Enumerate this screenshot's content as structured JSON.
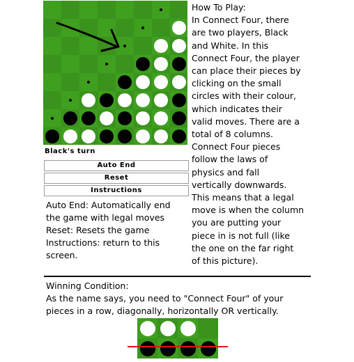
{
  "board": {
    "rows": 8,
    "cols": 8,
    "cells": [
      "......h.",
      ".....h.W",
      "....h.WW",
      "...h.BWB",
      "..h.BWWW",
      ".hWBWWWB",
      "hBBWBWWB",
      "BWWBBWWB"
    ]
  },
  "status": "Black's turn",
  "buttons": {
    "auto_end": "Auto End",
    "reset": "Reset",
    "instructions": "Instructions"
  },
  "control_notes": [
    "Auto End: Automatically end",
    "the game with legal moves",
    "Reset: Resets the game",
    "Instructions: return to this",
    "screen."
  ],
  "how_to_play": [
    "How To Play:",
    "In Connect Four, there",
    "are two players, Black",
    "and White. In this",
    "Connect Four, the player",
    "can place their pieces by",
    "clicking on the small",
    "circles with their colour,",
    "which indicates their",
    "valid moves. There are a",
    "total of 8 columns.",
    "Connect Four pieces",
    "follow the laws of",
    "physics and fall",
    "vertically downwards.",
    "This means that a legal",
    "move is when the column",
    "you are putting your",
    "piece in is not full (like",
    "the one on the far right",
    "of this picture)."
  ],
  "winning": {
    "heading": "Winning Condition:",
    "lines": [
      "As the name says, you need to \"Connect Four\" of your",
      "pieces in a row, diagonally, horizontally OR vertically."
    ]
  },
  "example": {
    "cells": [
      "WWW.",
      "BBBB"
    ]
  },
  "colors": {
    "board_green": "#3f9f1f",
    "strike_red": "#e51414"
  }
}
